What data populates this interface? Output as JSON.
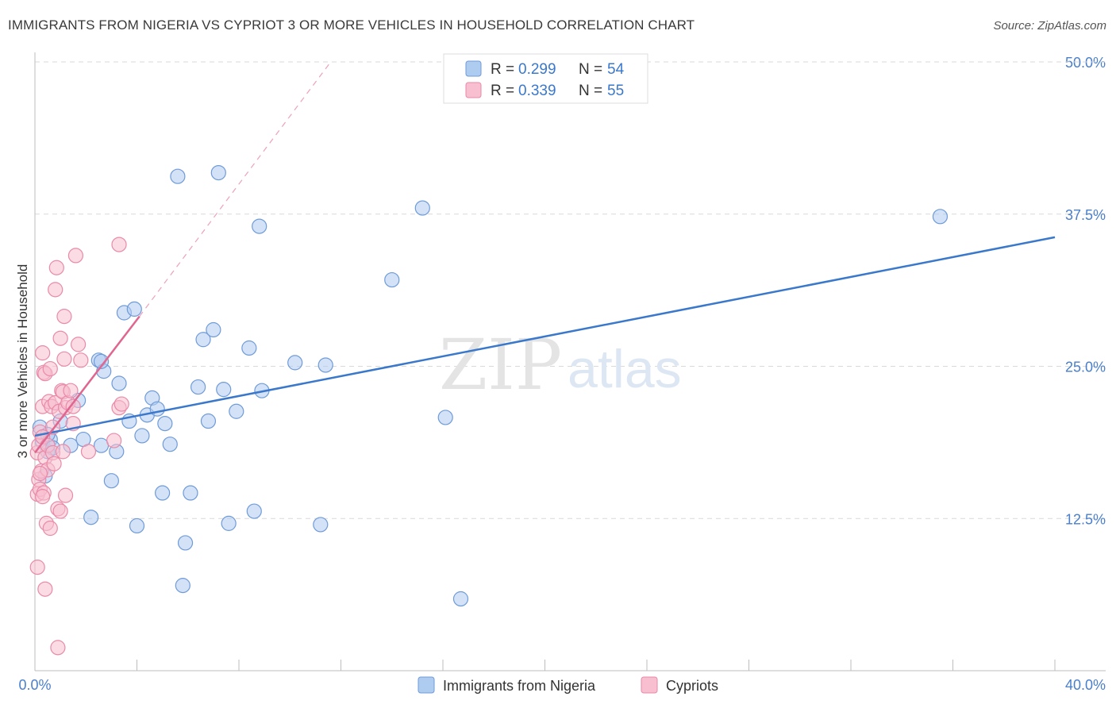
{
  "title": "IMMIGRANTS FROM NIGERIA VS CYPRIOT 3 OR MORE VEHICLES IN HOUSEHOLD CORRELATION CHART",
  "source": "Source: ZipAtlas.com",
  "watermark": {
    "zip": "ZIP",
    "atlas": "atlas"
  },
  "colors": {
    "blue_fill": "#aecbf0",
    "blue_stroke": "#6f9bd8",
    "blue_line": "#3a78cc",
    "pink_fill": "#f8bfd0",
    "pink_stroke": "#e98aa8",
    "pink_line": "#e0668f",
    "grid": "#d9d9d9",
    "tick_text": "#4a7fcb"
  },
  "chart_data": {
    "type": "scatter",
    "xlabel": "",
    "ylabel": "3 or more Vehicles in Household",
    "xlim": [
      0,
      40
    ],
    "ylim": [
      0,
      50
    ],
    "x_tick_labels": [
      "0.0%",
      "40.0%"
    ],
    "y_ticks": [
      12.5,
      25.0,
      37.5,
      50.0
    ],
    "y_tick_labels": [
      "12.5%",
      "25.0%",
      "37.5%",
      "50.0%"
    ],
    "grid": true,
    "legend": [
      {
        "series": "Immigrants from Nigeria",
        "r_label": "R =",
        "r_value": "0.299",
        "n_label": "N =",
        "n_value": "54"
      },
      {
        "series": "Cypriots",
        "r_label": "R =",
        "r_value": "0.339",
        "n_label": "N =",
        "n_value": "55"
      }
    ],
    "series": [
      {
        "name": "Immigrants from Nigeria",
        "color": "#6f9bd8",
        "trend": {
          "x": [
            0,
            40
          ],
          "y": [
            19.3,
            35.6
          ]
        },
        "points": [
          [
            0.2,
            20.0
          ],
          [
            0.3,
            18.8
          ],
          [
            0.4,
            16.0
          ],
          [
            0.5,
            18.0
          ],
          [
            0.6,
            19.0
          ],
          [
            0.7,
            18.3
          ],
          [
            1.0,
            20.5
          ],
          [
            1.4,
            18.5
          ],
          [
            1.7,
            22.2
          ],
          [
            1.9,
            19.0
          ],
          [
            2.2,
            12.6
          ],
          [
            2.5,
            25.5
          ],
          [
            2.6,
            18.5
          ],
          [
            2.7,
            24.6
          ],
          [
            3.0,
            15.6
          ],
          [
            3.2,
            18.0
          ],
          [
            3.3,
            23.6
          ],
          [
            3.5,
            29.4
          ],
          [
            3.7,
            20.5
          ],
          [
            3.9,
            29.7
          ],
          [
            4.0,
            11.9
          ],
          [
            4.2,
            19.3
          ],
          [
            4.4,
            21.0
          ],
          [
            4.6,
            22.4
          ],
          [
            4.8,
            21.5
          ],
          [
            5.0,
            14.6
          ],
          [
            5.1,
            20.3
          ],
          [
            5.3,
            18.6
          ],
          [
            5.6,
            40.6
          ],
          [
            5.8,
            7.0
          ],
          [
            5.9,
            10.5
          ],
          [
            6.1,
            14.6
          ],
          [
            6.4,
            23.3
          ],
          [
            6.6,
            27.2
          ],
          [
            6.8,
            20.5
          ],
          [
            7.0,
            28.0
          ],
          [
            7.2,
            40.9
          ],
          [
            7.4,
            23.1
          ],
          [
            7.6,
            12.1
          ],
          [
            7.9,
            21.3
          ],
          [
            8.4,
            26.5
          ],
          [
            8.6,
            13.1
          ],
          [
            8.8,
            36.5
          ],
          [
            8.9,
            23.0
          ],
          [
            10.2,
            25.3
          ],
          [
            11.2,
            12.0
          ],
          [
            11.4,
            25.1
          ],
          [
            14.0,
            32.1
          ],
          [
            15.2,
            38.0
          ],
          [
            16.1,
            20.8
          ],
          [
            16.7,
            5.9
          ],
          [
            35.5,
            37.3
          ],
          [
            2.6,
            25.4
          ],
          [
            0.5,
            19.4
          ]
        ]
      },
      {
        "name": "Cypriots",
        "color": "#e98aa8",
        "trend": {
          "x": [
            0,
            4.1
          ],
          "y": [
            17.9,
            29.1
          ]
        },
        "trend_ext": {
          "x": [
            4.1,
            11.6
          ],
          "y": [
            29.1,
            50.0
          ]
        },
        "points": [
          [
            0.1,
            8.5
          ],
          [
            0.1,
            14.5
          ],
          [
            0.1,
            17.9
          ],
          [
            0.15,
            15.7
          ],
          [
            0.15,
            18.5
          ],
          [
            0.2,
            14.9
          ],
          [
            0.2,
            19.6
          ],
          [
            0.25,
            16.4
          ],
          [
            0.3,
            26.1
          ],
          [
            0.3,
            21.7
          ],
          [
            0.3,
            19.2
          ],
          [
            0.35,
            24.5
          ],
          [
            0.35,
            14.6
          ],
          [
            0.4,
            24.4
          ],
          [
            0.4,
            17.5
          ],
          [
            0.4,
            6.7
          ],
          [
            0.45,
            12.1
          ],
          [
            0.5,
            16.5
          ],
          [
            0.5,
            18.5
          ],
          [
            0.55,
            22.1
          ],
          [
            0.6,
            24.8
          ],
          [
            0.6,
            11.7
          ],
          [
            0.65,
            21.7
          ],
          [
            0.7,
            20.0
          ],
          [
            0.7,
            17.9
          ],
          [
            0.75,
            17.0
          ],
          [
            0.8,
            31.3
          ],
          [
            0.8,
            22.0
          ],
          [
            0.85,
            33.1
          ],
          [
            0.9,
            13.3
          ],
          [
            0.9,
            1.9
          ],
          [
            0.95,
            21.3
          ],
          [
            1.0,
            27.3
          ],
          [
            1.0,
            13.1
          ],
          [
            1.05,
            23.0
          ],
          [
            1.1,
            22.9
          ],
          [
            1.1,
            18.0
          ],
          [
            1.15,
            29.1
          ],
          [
            1.15,
            25.6
          ],
          [
            1.2,
            21.6
          ],
          [
            1.2,
            14.4
          ],
          [
            1.3,
            22.0
          ],
          [
            1.4,
            23.0
          ],
          [
            1.5,
            21.7
          ],
          [
            1.5,
            20.3
          ],
          [
            1.6,
            34.1
          ],
          [
            1.7,
            26.8
          ],
          [
            1.8,
            25.5
          ],
          [
            2.1,
            18.0
          ],
          [
            3.1,
            18.9
          ],
          [
            3.3,
            21.6
          ],
          [
            3.3,
            35.0
          ],
          [
            3.4,
            21.9
          ],
          [
            0.2,
            16.2
          ],
          [
            0.3,
            14.3
          ]
        ]
      }
    ]
  },
  "bottom_legend": [
    {
      "label": "Immigrants from Nigeria"
    },
    {
      "label": "Cypriots"
    }
  ]
}
